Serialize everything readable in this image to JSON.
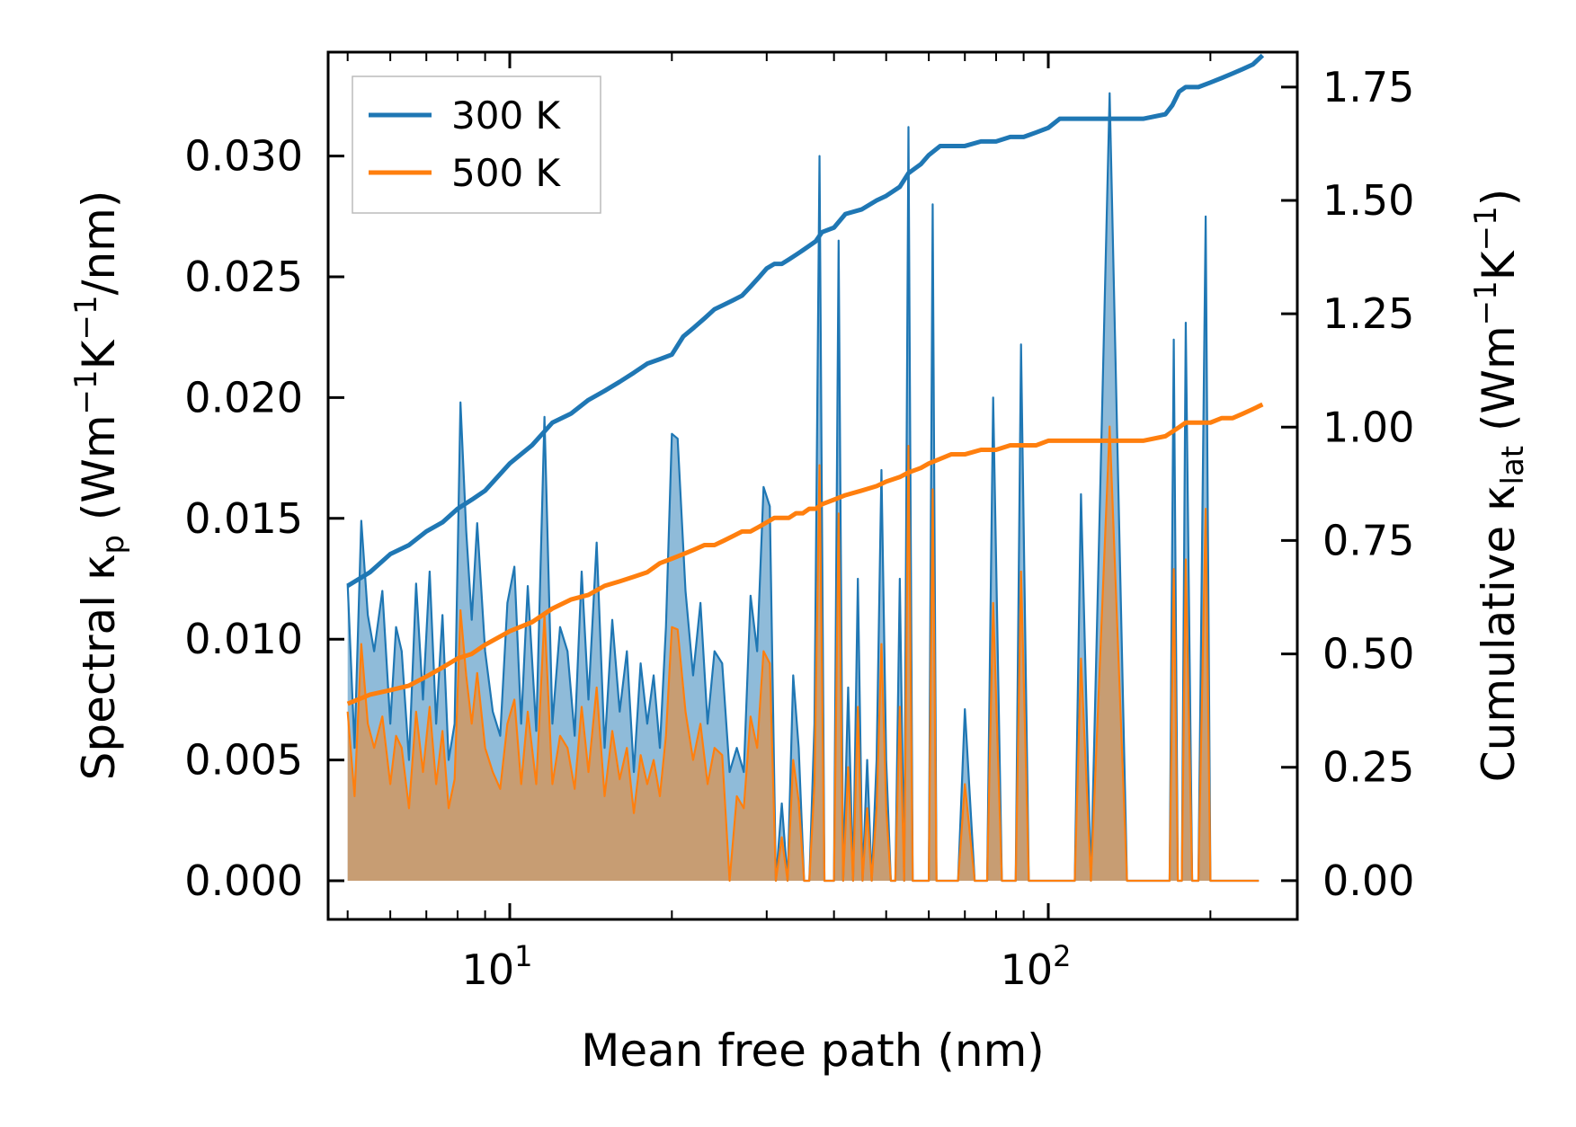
{
  "chart_data": {
    "type": "line",
    "xscale": "log",
    "xlim": [
      4.6,
      290
    ],
    "ylim": [
      -0.0016,
      0.0343
    ],
    "y2lim": [
      -0.0855,
      1.827
    ],
    "xlabel": "Mean free path (nm)",
    "ylabel": {
      "base": "Spectral κ",
      "sub": "p",
      "unit_pre": " (Wm",
      "sup1": "−1",
      "unit_mid": "K",
      "sup2": "−1",
      "unit_post": "/nm)"
    },
    "y2label": {
      "base": "Cumulative κ",
      "sub": "lat",
      "unit_pre": " (Wm",
      "sup1": "−1",
      "unit_mid": "K",
      "sup2": "−1",
      "unit_post": ")"
    },
    "xticks": [
      {
        "value": 10,
        "base": "10",
        "exp": "1"
      },
      {
        "value": 100,
        "base": "10",
        "exp": "2"
      }
    ],
    "yticks": [
      {
        "value": 0.0,
        "label": "0.000"
      },
      {
        "value": 0.005,
        "label": "0.005"
      },
      {
        "value": 0.01,
        "label": "0.010"
      },
      {
        "value": 0.015,
        "label": "0.015"
      },
      {
        "value": 0.02,
        "label": "0.020"
      },
      {
        "value": 0.025,
        "label": "0.025"
      },
      {
        "value": 0.03,
        "label": "0.030"
      }
    ],
    "y2ticks": [
      {
        "value": 0.0,
        "label": "0.00"
      },
      {
        "value": 0.25,
        "label": "0.25"
      },
      {
        "value": 0.5,
        "label": "0.50"
      },
      {
        "value": 0.75,
        "label": "0.75"
      },
      {
        "value": 1.0,
        "label": "1.00"
      },
      {
        "value": 1.25,
        "label": "1.25"
      },
      {
        "value": 1.5,
        "label": "1.50"
      },
      {
        "value": 1.75,
        "label": "1.75"
      }
    ],
    "legend": {
      "placement": "top-left",
      "entries": [
        {
          "label": "300 K",
          "color": "#1f77b4"
        },
        {
          "label": "500 K",
          "color": "#ff7f0e"
        }
      ]
    },
    "colors": {
      "blue": "#1f77b4",
      "orange": "#ff7f0e"
    },
    "spectral": {
      "x": [
        5.0,
        5.15,
        5.3,
        5.45,
        5.6,
        5.8,
        6.0,
        6.15,
        6.3,
        6.5,
        6.7,
        6.9,
        7.1,
        7.3,
        7.5,
        7.7,
        7.9,
        8.1,
        8.3,
        8.5,
        8.7,
        9.0,
        9.3,
        9.6,
        9.9,
        10.2,
        10.5,
        10.8,
        11.2,
        11.6,
        12.0,
        12.4,
        12.8,
        13.2,
        13.6,
        14.0,
        14.5,
        15.0,
        15.5,
        16.0,
        16.5,
        17.0,
        17.5,
        18.0,
        18.5,
        19.0,
        19.5,
        20.0,
        20.5,
        21.2,
        21.9,
        22.6,
        23.3,
        24.0,
        24.8,
        25.6,
        26.4,
        27.2,
        28.0,
        28.8,
        29.6,
        30.4,
        31.2,
        32.0,
        32.8,
        33.6,
        34.4,
        35.2,
        36.0,
        36.8,
        37.6,
        38.4,
        39.2,
        40.0,
        40.8,
        41.6,
        42.5,
        43.4,
        44.3,
        45.2,
        46.1,
        47.0,
        48.0,
        49.0,
        50.0,
        51.0,
        52.0,
        53.0,
        54.0,
        55.0,
        56.0,
        57.0,
        58.0,
        59.0,
        60.0,
        61.0,
        62.0,
        63.0,
        64.0,
        66.0,
        68.0,
        70.0,
        73.0,
        75.0,
        77.0,
        79.0,
        82.0,
        85.0,
        87.0,
        89.0,
        92.0,
        96.0,
        100.0,
        104.0,
        108.0,
        110.0,
        112.0,
        115.0,
        120.0,
        130.0,
        140.0,
        150.0,
        160.0,
        165.0,
        168.0,
        171.0,
        174.0,
        177.0,
        180.0,
        185.0,
        190.0,
        196.0,
        200.0,
        204.0,
        208.0,
        212.0,
        218.0,
        224.0,
        230.0,
        234.0,
        238.0,
        242.0,
        246.0,
        250.0
      ],
      "y300": [
        0.0123,
        0.0055,
        0.0149,
        0.011,
        0.0095,
        0.012,
        0.0065,
        0.0105,
        0.0095,
        0.005,
        0.0123,
        0.0075,
        0.0128,
        0.0065,
        0.011,
        0.005,
        0.0065,
        0.0198,
        0.0145,
        0.0108,
        0.0148,
        0.0095,
        0.007,
        0.006,
        0.0115,
        0.013,
        0.0065,
        0.0122,
        0.0062,
        0.0192,
        0.0065,
        0.0105,
        0.0095,
        0.006,
        0.0128,
        0.0075,
        0.014,
        0.0055,
        0.0108,
        0.007,
        0.0095,
        0.0045,
        0.009,
        0.0065,
        0.0085,
        0.0055,
        0.0105,
        0.0185,
        0.0183,
        0.012,
        0.0085,
        0.0115,
        0.0065,
        0.0095,
        0.009,
        0.0045,
        0.0055,
        0.0045,
        0.0118,
        0.0095,
        0.0163,
        0.0155,
        0.0,
        0.0032,
        0.0,
        0.0085,
        0.0055,
        0.0,
        0.0,
        0.0065,
        0.03,
        0.0,
        0.0,
        0.0,
        0.0265,
        0.0,
        0.008,
        0.0,
        0.0125,
        0.0,
        0.005,
        0.0,
        0.005,
        0.017,
        0.005,
        0.0,
        0.0,
        0.0125,
        0.0,
        0.0312,
        0.0,
        0.0,
        0.0,
        0.0,
        0.0,
        0.028,
        0.0,
        0.0,
        0.0,
        0.0,
        0.0,
        0.0071,
        0.0,
        0.0,
        0.0,
        0.02,
        0.0,
        0.0,
        0.0,
        0.0222,
        0.0,
        0.0,
        0.0,
        0.0,
        0.0,
        0.0,
        0.0,
        0.016,
        0.0,
        0.0326,
        0.0,
        0.0,
        0.0,
        0.0,
        0.0,
        0.0224,
        0.0,
        0.0,
        0.0231,
        0.0,
        0.0,
        0.0275,
        0.0,
        0.0,
        0.0,
        0.0,
        0.0,
        0.0,
        0.0,
        0.0,
        0.0,
        0.0,
        0.0
      ],
      "y500": [
        0.007,
        0.0035,
        0.0098,
        0.0065,
        0.0055,
        0.0068,
        0.004,
        0.006,
        0.0055,
        0.003,
        0.007,
        0.0045,
        0.0072,
        0.004,
        0.0062,
        0.003,
        0.0042,
        0.0112,
        0.0085,
        0.0065,
        0.0086,
        0.0055,
        0.0045,
        0.0038,
        0.0065,
        0.0075,
        0.004,
        0.007,
        0.004,
        0.011,
        0.004,
        0.006,
        0.0055,
        0.0038,
        0.0072,
        0.0045,
        0.008,
        0.0035,
        0.0062,
        0.0042,
        0.0055,
        0.0028,
        0.0052,
        0.004,
        0.005,
        0.0035,
        0.006,
        0.0105,
        0.0104,
        0.007,
        0.005,
        0.0065,
        0.004,
        0.0055,
        0.0052,
        0.0,
        0.0035,
        0.003,
        0.0068,
        0.0055,
        0.0095,
        0.009,
        0.0,
        0.0018,
        0.0,
        0.005,
        0.0033,
        0.0,
        0.0,
        0.004,
        0.0172,
        0.0,
        0.0,
        0.0,
        0.0152,
        0.0,
        0.0047,
        0.0,
        0.0072,
        0.0,
        0.003,
        0.0,
        0.003,
        0.0098,
        0.003,
        0.0,
        0.0,
        0.0072,
        0.0,
        0.018,
        0.0,
        0.0,
        0.0,
        0.0,
        0.0,
        0.0162,
        0.0,
        0.0,
        0.0,
        0.0,
        0.0,
        0.004,
        0.0,
        0.0,
        0.0,
        0.0115,
        0.0,
        0.0,
        0.0,
        0.0128,
        0.0,
        0.0,
        0.0,
        0.0,
        0.0,
        0.0,
        0.0,
        0.0092,
        0.0,
        0.0188,
        0.0,
        0.0,
        0.0,
        0.0,
        0.0,
        0.0129,
        0.0,
        0.0,
        0.0133,
        0.0,
        0.0,
        0.0154,
        0.0,
        0.0,
        0.0,
        0.0,
        0.0,
        0.0,
        0.0,
        0.0,
        0.0,
        0.0,
        0.0
      ]
    },
    "cumulative": {
      "x": [
        5.0,
        5.5,
        6.0,
        6.5,
        7.0,
        7.5,
        8.0,
        8.5,
        9.0,
        10.0,
        11.0,
        12.0,
        13.0,
        14.0,
        15.0,
        16.0,
        17.0,
        18.0,
        19.0,
        20.0,
        21.0,
        22.0,
        23.0,
        24.0,
        25.0,
        26.0,
        27.0,
        28.0,
        29.0,
        30.0,
        31.0,
        32.0,
        33.0,
        34.0,
        35.0,
        36.0,
        37.0,
        38.0,
        40.0,
        42.0,
        45.0,
        48.0,
        50.0,
        53.0,
        55.0,
        58.0,
        60.0,
        63.0,
        66.0,
        70.0,
        75.0,
        80.0,
        85.0,
        90.0,
        95.0,
        100.0,
        105.0,
        110.0,
        115.0,
        130.0,
        150.0,
        165.0,
        170.0,
        175.0,
        180.0,
        190.0,
        200.0,
        210.0,
        220.0,
        230.0,
        240.0,
        250.0
      ],
      "y300": [
        0.65,
        0.68,
        0.72,
        0.74,
        0.77,
        0.79,
        0.82,
        0.84,
        0.86,
        0.92,
        0.96,
        1.01,
        1.03,
        1.06,
        1.08,
        1.1,
        1.12,
        1.14,
        1.15,
        1.16,
        1.2,
        1.22,
        1.24,
        1.26,
        1.27,
        1.28,
        1.29,
        1.31,
        1.33,
        1.35,
        1.36,
        1.36,
        1.37,
        1.38,
        1.39,
        1.4,
        1.41,
        1.43,
        1.44,
        1.47,
        1.48,
        1.5,
        1.51,
        1.53,
        1.56,
        1.58,
        1.6,
        1.62,
        1.62,
        1.62,
        1.63,
        1.63,
        1.64,
        1.64,
        1.65,
        1.66,
        1.68,
        1.68,
        1.68,
        1.68,
        1.68,
        1.69,
        1.71,
        1.74,
        1.75,
        1.75,
        1.76,
        1.77,
        1.78,
        1.79,
        1.8,
        1.82
      ],
      "y500": [
        0.39,
        0.41,
        0.42,
        0.43,
        0.45,
        0.47,
        0.49,
        0.5,
        0.52,
        0.55,
        0.57,
        0.6,
        0.62,
        0.63,
        0.65,
        0.66,
        0.67,
        0.68,
        0.7,
        0.71,
        0.72,
        0.73,
        0.74,
        0.74,
        0.75,
        0.76,
        0.77,
        0.77,
        0.78,
        0.79,
        0.8,
        0.8,
        0.8,
        0.81,
        0.81,
        0.82,
        0.82,
        0.83,
        0.84,
        0.85,
        0.86,
        0.87,
        0.88,
        0.89,
        0.9,
        0.91,
        0.92,
        0.93,
        0.94,
        0.94,
        0.95,
        0.95,
        0.96,
        0.96,
        0.96,
        0.97,
        0.97,
        0.97,
        0.97,
        0.97,
        0.97,
        0.98,
        0.99,
        1.0,
        1.01,
        1.01,
        1.01,
        1.02,
        1.02,
        1.03,
        1.04,
        1.05
      ]
    }
  }
}
